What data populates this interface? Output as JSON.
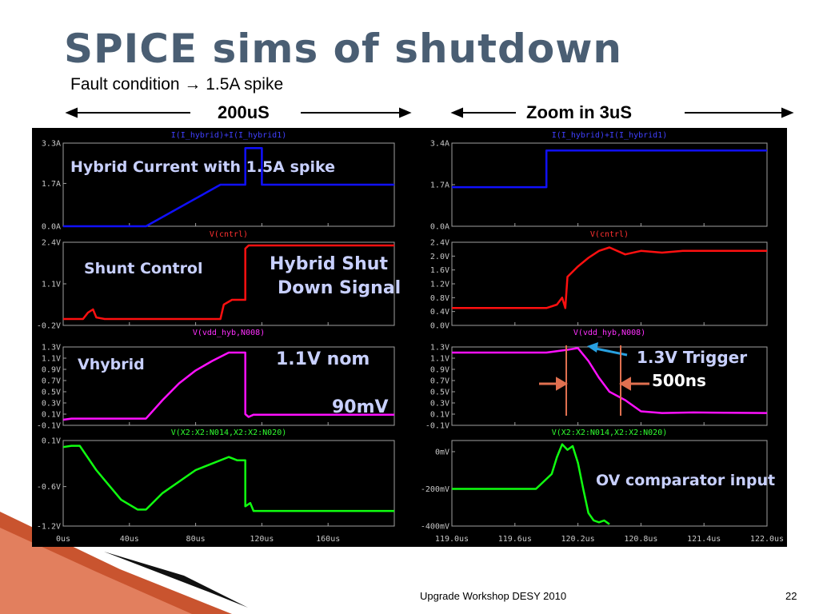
{
  "slide": {
    "title": "SPICE sims of  shutdown",
    "subtitle": "Fault condition → 1.5A spike",
    "left_header": "200uS",
    "right_header": "Zoom in 3uS",
    "footer_text": "Upgrade Workshop DESY 2010",
    "page_number": "22"
  },
  "annotations": {
    "hybrid_current": "Hybrid Current with 1.5A spike",
    "shunt_control": "Shunt Control",
    "shut_down_1": "Hybrid  Shut",
    "shut_down_2": "Down Signal",
    "vhybrid": "Vhybrid",
    "nom": "1.1V nom",
    "mv90": "90mV",
    "trigger": "1.3V Trigger",
    "ns500": "500ns",
    "ov": "OV comparator input"
  },
  "colors": {
    "current": "#1010ff",
    "control": "#ff1010",
    "vhyb": "#ff10ff",
    "comparator": "#10ff10",
    "panel_bg": "#000000",
    "axis": "#a0a0a0",
    "trigger_arrow": "#28a0e0",
    "marker": "#e07050"
  },
  "chart_data": [
    {
      "type": "line",
      "panel": "left",
      "xlabel_ticks": [
        "0us",
        "40us",
        "80us",
        "120us",
        "160us"
      ],
      "xlim": [
        0,
        200
      ],
      "subplots": [
        {
          "title": "I(I_hybrid)+I(I_hybrid1)",
          "ylim": [
            0,
            3.3
          ],
          "yticks": [
            "3.3A",
            "1.7A",
            "0.0A"
          ],
          "ytick_values": [
            3.3,
            1.7,
            0
          ],
          "color_key": "current",
          "x": [
            0,
            50,
            95,
            110,
            110,
            120,
            120,
            125,
            125,
            200
          ],
          "y": [
            0,
            0,
            1.65,
            1.65,
            3.1,
            3.1,
            1.65,
            1.65,
            1.65,
            1.65
          ]
        },
        {
          "title": "V(cntrl)",
          "ylim": [
            -0.2,
            2.4
          ],
          "yticks": [
            "2.4V",
            "1.1V",
            "-0.2V"
          ],
          "ytick_values": [
            2.4,
            1.1,
            -0.2
          ],
          "color_key": "control",
          "x": [
            0,
            12,
            15,
            18,
            20,
            25,
            60,
            95,
            97,
            102,
            110,
            110,
            112,
            200
          ],
          "y": [
            0.0,
            0.0,
            0.2,
            0.3,
            0.05,
            0.0,
            0.0,
            0.0,
            0.45,
            0.6,
            0.6,
            2.2,
            2.3,
            2.3
          ]
        },
        {
          "title": "V(vdd_hyb,N008)",
          "ylim": [
            -0.1,
            1.3
          ],
          "yticks": [
            "1.3V",
            "1.1V",
            "0.9V",
            "0.7V",
            "0.5V",
            "0.3V",
            "0.1V",
            "-0.1V"
          ],
          "ytick_values": [
            1.3,
            1.1,
            0.9,
            0.7,
            0.5,
            0.3,
            0.1,
            -0.1
          ],
          "color_key": "vhyb",
          "x": [
            0,
            5,
            50,
            60,
            70,
            80,
            90,
            100,
            110,
            110,
            112,
            115,
            200
          ],
          "y": [
            0.0,
            0.02,
            0.02,
            0.35,
            0.65,
            0.88,
            1.05,
            1.2,
            1.2,
            0.1,
            0.05,
            0.09,
            0.09
          ]
        },
        {
          "title": "V(X2:X2:N014,X2:X2:N020)",
          "ylim": [
            -1.2,
            0.1
          ],
          "yticks": [
            "0.1V",
            "-0.6V",
            "-1.2V"
          ],
          "ytick_values": [
            0.1,
            -0.6,
            -1.2
          ],
          "color_key": "comparator",
          "x": [
            0,
            5,
            10,
            20,
            35,
            45,
            50,
            60,
            80,
            100,
            105,
            110,
            110,
            113,
            115,
            200
          ],
          "y": [
            0.0,
            0.02,
            0.02,
            -0.35,
            -0.8,
            -0.95,
            -0.95,
            -0.7,
            -0.35,
            -0.15,
            -0.2,
            -0.2,
            -0.9,
            -0.85,
            -0.97,
            -0.97
          ]
        }
      ]
    },
    {
      "type": "line",
      "panel": "right",
      "xlabel_ticks": [
        "119.0us",
        "119.6us",
        "120.2us",
        "120.8us",
        "121.4us",
        "122.0us"
      ],
      "xlim": [
        119.0,
        122.0
      ],
      "subplots": [
        {
          "title": "I(I_hybrid)+I(I_hybrid1)",
          "ylim": [
            0,
            3.4
          ],
          "yticks": [
            "3.4A",
            "1.7A",
            "0.0A"
          ],
          "ytick_values": [
            3.4,
            1.7,
            0
          ],
          "color_key": "current",
          "x": [
            119.0,
            119.9,
            119.9,
            122.0
          ],
          "y": [
            1.6,
            1.6,
            3.1,
            3.1
          ]
        },
        {
          "title": "V(cntrl)",
          "ylim": [
            0,
            2.4
          ],
          "yticks": [
            "2.4V",
            "2.0V",
            "1.6V",
            "1.2V",
            "0.8V",
            "0.4V",
            "0.0V"
          ],
          "ytick_values": [
            2.4,
            2.0,
            1.6,
            1.2,
            0.8,
            0.4,
            0.0
          ],
          "color_key": "control",
          "x": [
            119.0,
            119.9,
            120.0,
            120.05,
            120.08,
            120.1,
            120.2,
            120.3,
            120.4,
            120.5,
            120.65,
            120.8,
            121.0,
            121.2,
            121.5,
            122.0
          ],
          "y": [
            0.5,
            0.5,
            0.6,
            0.8,
            0.5,
            1.4,
            1.7,
            1.95,
            2.15,
            2.25,
            2.05,
            2.15,
            2.1,
            2.15,
            2.15,
            2.15
          ]
        },
        {
          "title": "V(vdd_hyb,N008)",
          "ylim": [
            -0.1,
            1.3
          ],
          "yticks": [
            "1.3V",
            "1.1V",
            "0.9V",
            "0.7V",
            "0.5V",
            "0.3V",
            "0.1V",
            "-0.1V"
          ],
          "ytick_values": [
            1.3,
            1.1,
            0.9,
            0.7,
            0.5,
            0.3,
            0.1,
            -0.1
          ],
          "color_key": "vhyb",
          "x": [
            119.0,
            119.9,
            120.1,
            120.2,
            120.3,
            120.4,
            120.5,
            120.65,
            120.8,
            121.0,
            121.3,
            122.0
          ],
          "y": [
            1.2,
            1.2,
            1.25,
            1.28,
            1.05,
            0.75,
            0.5,
            0.35,
            0.15,
            0.12,
            0.13,
            0.12
          ]
        },
        {
          "title": "V(X2:X2:N014,X2:X2:N020)",
          "ylim": [
            -400,
            60
          ],
          "yticks": [
            "0mV",
            "-200mV",
            "-400mV"
          ],
          "ytick_values": [
            0,
            -200,
            -400
          ],
          "color_key": "comparator",
          "x": [
            119.0,
            119.8,
            119.95,
            120.0,
            120.05,
            120.1,
            120.15,
            120.2,
            120.25,
            120.3,
            120.35,
            120.4,
            120.45,
            120.5
          ],
          "y": [
            -200,
            -200,
            -120,
            -30,
            40,
            10,
            30,
            -60,
            -200,
            -330,
            -370,
            -380,
            -370,
            -390
          ]
        }
      ]
    }
  ]
}
